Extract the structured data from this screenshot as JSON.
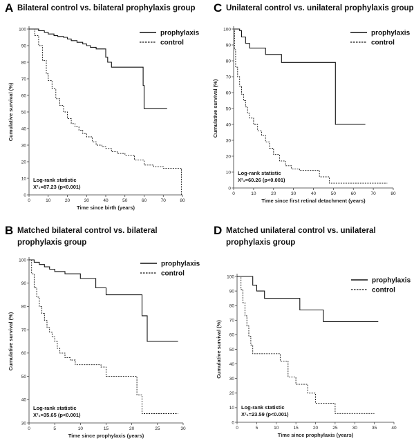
{
  "chart_data": [
    {
      "type": "line",
      "letter": "A",
      "title": [
        "Bilateral control vs. bilateral prophylaxis group"
      ],
      "xlabel": "Time since birth (years)",
      "ylabel": "Cumulative survival (%)",
      "xlim": [
        0,
        80
      ],
      "ylim": [
        0,
        100
      ],
      "xticks": [
        0,
        10,
        20,
        30,
        40,
        50,
        60,
        70,
        80
      ],
      "yticks": [
        0,
        10,
        20,
        30,
        40,
        50,
        60,
        70,
        80,
        90,
        100
      ],
      "stat_title": "Log-rank statistic",
      "stat_value": "X²₁=87.23 (p<0.001)",
      "series": [
        {
          "name": "prophylaxis",
          "style": "solid",
          "x": [
            0,
            5,
            8,
            10,
            13,
            15,
            18,
            20,
            22,
            25,
            28,
            30,
            32,
            35,
            40,
            41,
            43,
            59,
            59.5,
            60,
            72
          ],
          "y": [
            100,
            99,
            98,
            97,
            96,
            95.5,
            95,
            94,
            93,
            92,
            91,
            90,
            89,
            88,
            83,
            80,
            77,
            77,
            66,
            52,
            52
          ]
        },
        {
          "name": "control",
          "style": "dashed",
          "x": [
            0,
            3,
            5,
            7,
            9,
            10,
            12,
            14,
            16,
            18,
            20,
            22,
            24,
            26,
            28,
            30,
            33,
            35,
            38,
            40,
            43,
            46,
            50,
            55,
            60,
            65,
            70,
            75,
            79.5
          ],
          "y": [
            100,
            96,
            90,
            81,
            73,
            69,
            64,
            58,
            54,
            50,
            46,
            43,
            41,
            39,
            37,
            35,
            32,
            30,
            29,
            28,
            26,
            25,
            24,
            21,
            18,
            17,
            16,
            16,
            0
          ]
        }
      ]
    },
    {
      "type": "line",
      "letter": "C",
      "title": [
        "Unilateral control vs. unilateral prophylaxis group"
      ],
      "xlabel": "Time since first retinal detachment (years)",
      "ylabel": "Cumulative survival (%)",
      "xlim": [
        0,
        80
      ],
      "ylim": [
        0,
        100
      ],
      "xticks": [
        0,
        10,
        20,
        30,
        40,
        50,
        60,
        70,
        80
      ],
      "yticks": [
        0,
        10,
        20,
        30,
        40,
        50,
        60,
        70,
        80,
        90,
        100
      ],
      "stat_title": "Log-rank statistic",
      "stat_value": "X²₁=60.26 (p<0.001)",
      "series": [
        {
          "name": "prophylaxis",
          "style": "solid",
          "x": [
            0,
            2,
            3,
            4,
            6,
            8,
            14,
            16,
            24,
            50,
            51,
            66
          ],
          "y": [
            100,
            100,
            99,
            95,
            91,
            88,
            88,
            84,
            79,
            79,
            40,
            40
          ]
        },
        {
          "name": "control",
          "style": "dashed",
          "x": [
            0,
            0.5,
            1,
            2,
            3,
            4,
            5,
            6,
            7,
            8,
            10,
            12,
            14,
            16,
            18,
            20,
            23,
            26,
            29,
            33,
            38,
            43,
            48,
            55,
            65,
            77
          ],
          "y": [
            100,
            87,
            76,
            70,
            64,
            59,
            55,
            51,
            47,
            44,
            40,
            36,
            33,
            29,
            25,
            21,
            17,
            14,
            12,
            11,
            11,
            7,
            3,
            3,
            3,
            3
          ]
        }
      ]
    },
    {
      "type": "line",
      "letter": "B",
      "title": [
        "Matched bilateral control vs. bilateral",
        "prophylaxis group"
      ],
      "xlabel": "Time since prophylaxis (years)",
      "ylabel": "Cumulative survival (%)",
      "xlim": [
        0,
        30
      ],
      "ylim": [
        30,
        100
      ],
      "xticks": [
        0,
        5,
        10,
        15,
        20,
        25,
        30
      ],
      "yticks": [
        30,
        40,
        50,
        60,
        70,
        80,
        90,
        100
      ],
      "stat_title": "Log-rank statistic",
      "stat_value": "X²₁=35.65 (p<0.001)",
      "series": [
        {
          "name": "prophylaxis",
          "style": "solid",
          "x": [
            0,
            1,
            2,
            3,
            4,
            5,
            7,
            10,
            13,
            15,
            21,
            22,
            23,
            29
          ],
          "y": [
            100,
            99,
            98,
            97,
            96,
            95,
            94,
            92,
            88,
            85,
            85,
            76,
            65,
            65
          ]
        },
        {
          "name": "control",
          "style": "dashed",
          "x": [
            0,
            0.5,
            1,
            1.5,
            2,
            2.5,
            3,
            3.5,
            4,
            4.5,
            5,
            5.5,
            6,
            7,
            8,
            9,
            11,
            14,
            15,
            21,
            22,
            29
          ],
          "y": [
            100,
            94,
            88,
            84,
            80,
            77,
            74,
            71,
            69,
            67,
            65,
            62,
            60,
            58,
            57,
            55,
            55,
            54,
            50,
            42,
            34,
            34
          ]
        }
      ]
    },
    {
      "type": "line",
      "letter": "D",
      "title": [
        "Matched unilateral control vs. unilateral",
        "prophylaxis group"
      ],
      "xlabel": "Time since prophylaxis (years)",
      "ylabel": "Cumulative survival (%)",
      "xlim": [
        0,
        40
      ],
      "ylim": [
        0,
        100
      ],
      "xticks": [
        0,
        5,
        10,
        15,
        20,
        25,
        30,
        35,
        40
      ],
      "yticks": [
        0,
        10,
        20,
        30,
        40,
        50,
        60,
        70,
        80,
        90,
        100
      ],
      "stat_title": "Log-rank statistic",
      "stat_value": "X²₁=23.59 (p<0.001)",
      "series": [
        {
          "name": "prophylaxis",
          "style": "solid",
          "x": [
            0,
            3,
            4,
            5,
            7,
            16,
            22,
            36
          ],
          "y": [
            100,
            100,
            94,
            90,
            85,
            77,
            69,
            69
          ]
        },
        {
          "name": "control",
          "style": "dashed",
          "x": [
            0,
            1,
            1.5,
            2,
            2.5,
            3,
            3.5,
            4,
            5,
            7,
            10,
            11,
            13,
            15,
            18,
            20,
            22,
            25,
            35
          ],
          "y": [
            100,
            91,
            82,
            73,
            66,
            59,
            53,
            47,
            47,
            47,
            47,
            42,
            31,
            26,
            20,
            13,
            13,
            6,
            6
          ]
        }
      ]
    }
  ]
}
